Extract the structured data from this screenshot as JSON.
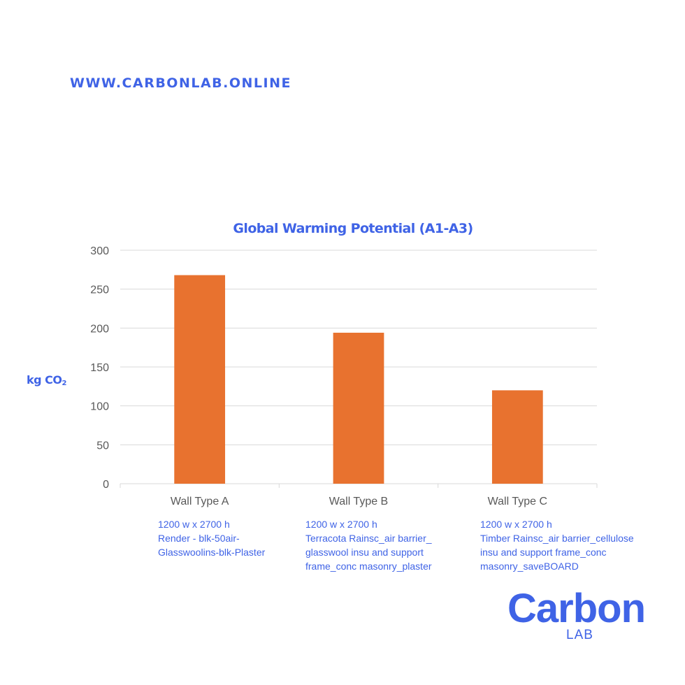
{
  "site": {
    "url": "WWW.CARBONLAB.ONLINE"
  },
  "chart_data": {
    "type": "bar",
    "title": "Global Warming Potential (A1-A3)",
    "ylabel_main": "kg CO",
    "ylabel_sub": "2",
    "xlabel": "",
    "categories": [
      "Wall Type A",
      "Wall Type B",
      "Wall Type C"
    ],
    "values": [
      268,
      194,
      120
    ],
    "ylim": [
      0,
      300
    ],
    "yticks": [
      0,
      50,
      100,
      150,
      200,
      250,
      300
    ],
    "grid": true,
    "legend": "none",
    "bar_color": "#e8722f"
  },
  "descriptions": [
    {
      "lines": [
        "1200 w x 2700 h",
        "Render - blk-50air-",
        "Glasswoolins-blk-Plaster"
      ]
    },
    {
      "lines": [
        "1200 w x 2700 h",
        "Terracota Rainsc_air barrier_",
        "glasswool insu and support",
        "frame_conc masonry_plaster"
      ]
    },
    {
      "lines": [
        "1200 w x 2700 h",
        "Timber Rainsc_air barrier_cellulose",
        "insu and support frame_conc",
        "masonry_saveBOARD"
      ]
    }
  ],
  "logo": {
    "word": "Carbon",
    "sub": "LAB"
  },
  "colors": {
    "accent": "#3f63e6",
    "bar": "#e8722f",
    "grid": "#d9d9d9",
    "axis_text": "#595959"
  }
}
